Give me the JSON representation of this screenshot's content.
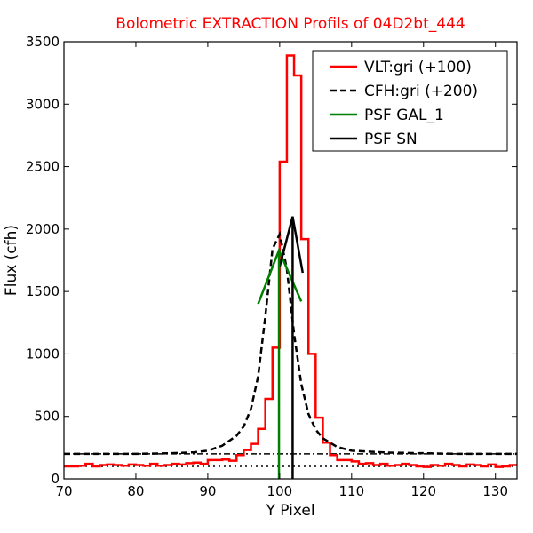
{
  "chart_data": {
    "type": "line",
    "title": "Bolometric EXTRACTION Profils of 04D2bt_444",
    "title_color": "#ff0000",
    "xlabel": "Y Pixel",
    "ylabel": "Flux (cfh)",
    "xlim": [
      70,
      133
    ],
    "ylim": [
      0,
      3500
    ],
    "xticks": [
      70,
      80,
      90,
      100,
      110,
      120,
      130
    ],
    "yticks": [
      0,
      500,
      1000,
      1500,
      2000,
      2500,
      3000,
      3500
    ],
    "grid": false,
    "legend_position": "top-right",
    "series": [
      {
        "name": "VLT:gri (+100)",
        "style": "steps",
        "color": "#ff0000",
        "x": [
          70,
          71,
          72,
          73,
          74,
          75,
          76,
          77,
          78,
          79,
          80,
          81,
          82,
          83,
          84,
          85,
          86,
          87,
          88,
          89,
          90,
          91,
          92,
          93,
          94,
          95,
          96,
          97,
          98,
          99,
          100,
          101,
          102,
          103,
          104,
          105,
          106,
          107,
          108,
          109,
          110,
          111,
          112,
          113,
          114,
          115,
          116,
          117,
          118,
          119,
          120,
          121,
          122,
          123,
          124,
          125,
          126,
          127,
          128,
          129,
          130,
          131,
          132,
          133
        ],
        "y": [
          100,
          100,
          105,
          120,
          100,
          110,
          115,
          110,
          105,
          115,
          110,
          105,
          120,
          105,
          110,
          120,
          115,
          125,
          130,
          120,
          150,
          150,
          155,
          145,
          190,
          230,
          280,
          400,
          640,
          1050,
          2540,
          3390,
          3230,
          1920,
          1000,
          490,
          290,
          190,
          150,
          150,
          140,
          120,
          125,
          110,
          120,
          105,
          110,
          120,
          110,
          100,
          95,
          110,
          105,
          120,
          110,
          100,
          115,
          110,
          100,
          115,
          95,
          100,
          110,
          110
        ]
      },
      {
        "name": "CFH:gri (+200)",
        "style": "dashed",
        "color": "#000000",
        "x": [
          70,
          75,
          80,
          85,
          88,
          90,
          92,
          94,
          95,
          96,
          97,
          98,
          99,
          100,
          101,
          102,
          103,
          104,
          105,
          106,
          108,
          110,
          115,
          120,
          125,
          130,
          133
        ],
        "y": [
          200,
          200,
          200,
          205,
          212,
          225,
          265,
          345,
          420,
          560,
          820,
          1300,
          1840,
          1960,
          1680,
          1160,
          760,
          520,
          395,
          325,
          255,
          225,
          210,
          205,
          200,
          200,
          200
        ]
      },
      {
        "name": "PSF GAL_1",
        "style": "solid",
        "color": "#008000",
        "x": [
          97,
          99.9,
          103
        ],
        "y": [
          1400,
          1830,
          1420
        ]
      },
      {
        "name": "PSF SN",
        "style": "solid",
        "color": "#000000",
        "x": [
          100,
          101.8,
          103.2
        ],
        "y": [
          1700,
          2100,
          1650
        ]
      }
    ],
    "reference_lines": [
      {
        "style": "dashdot",
        "color": "#000000",
        "y": 200
      },
      {
        "style": "dotted",
        "color": "#000000",
        "y": 100
      }
    ],
    "vertical_markers": [
      {
        "color": "#008000",
        "x": 99.9
      },
      {
        "color": "#000000",
        "x": 101.8
      }
    ]
  }
}
